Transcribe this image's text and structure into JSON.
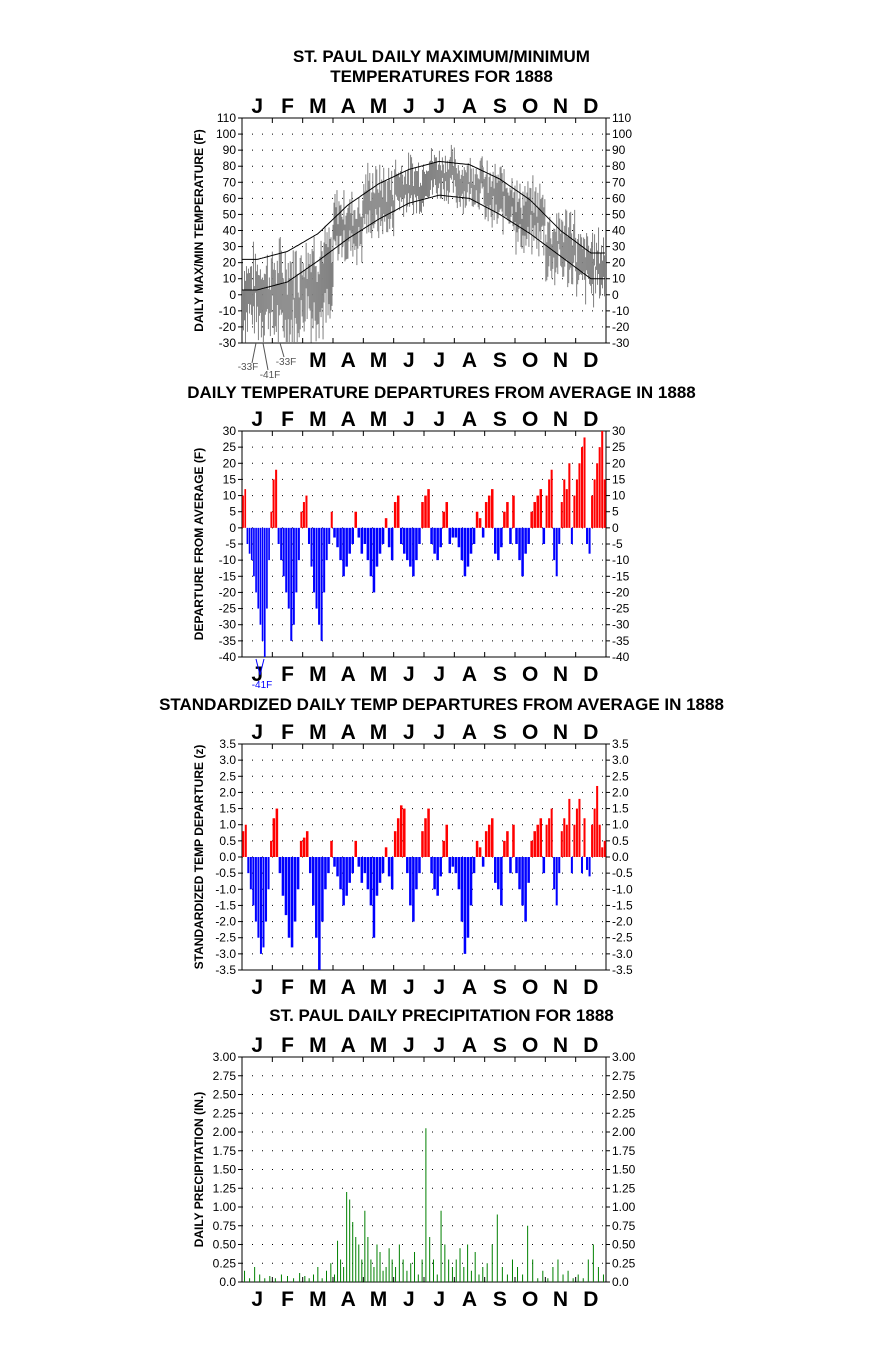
{
  "months": [
    "J",
    "F",
    "M",
    "A",
    "M",
    "J",
    "J",
    "A",
    "S",
    "O",
    "N",
    "D"
  ],
  "colors": {
    "pos": "#ff0000",
    "neg": "#0000ff",
    "grey": "#808080",
    "precip": "#008000",
    "axis": "#000000"
  },
  "chart_data": [
    {
      "type": "line",
      "title_lines": [
        "ST. PAUL DAILY MAXIMUM/MINIMUM",
        "TEMPERATURES FOR 1888"
      ],
      "ylabel": "DAILY MAX/MIN TEMPERATURE (F)",
      "ylim": [
        -30,
        110
      ],
      "yticks": [
        "110",
        "100",
        "90",
        "80",
        "70",
        "60",
        "50",
        "40",
        "30",
        "20",
        "10",
        "0",
        "-10",
        "-20",
        "-30"
      ],
      "bottom_months": [
        "M",
        "A",
        "M",
        "J",
        "J",
        "A",
        "S",
        "O",
        "N",
        "D"
      ],
      "annotations": [
        "-33F",
        "-41F",
        "-33F"
      ],
      "series": [
        {
          "kind": "normal_max",
          "values_by_month": [
            22,
            27,
            38,
            56,
            69,
            78,
            83,
            81,
            72,
            59,
            40,
            26
          ]
        },
        {
          "kind": "normal_min",
          "values_by_month": [
            3,
            8,
            21,
            35,
            47,
            57,
            62,
            60,
            50,
            38,
            24,
            10
          ]
        },
        {
          "kind": "observed_range",
          "values_by_month": [
            [
              -33,
              35
            ],
            [
              -41,
              40
            ],
            [
              -33,
              50
            ],
            [
              15,
              70
            ],
            [
              30,
              85
            ],
            [
              45,
              90
            ],
            [
              55,
              95
            ],
            [
              50,
              90
            ],
            [
              35,
              85
            ],
            [
              20,
              75
            ],
            [
              0,
              60
            ],
            [
              -10,
              45
            ]
          ]
        }
      ]
    },
    {
      "type": "bar",
      "title_lines": [
        "DAILY TEMPERATURE DEPARTURES FROM AVERAGE IN 1888"
      ],
      "ylabel": "DEPARTURE FROM AVERAGE (F)",
      "ylim": [
        -40,
        30
      ],
      "yticks": [
        "30",
        "25",
        "20",
        "15",
        "10",
        "5",
        "0",
        "-5",
        "-10",
        "-15",
        "-20",
        "-25",
        "-30",
        "-35",
        "-40"
      ],
      "annotations": [
        "-41F"
      ],
      "values_by_month": [
        [
          10,
          12,
          -5,
          -8,
          -10,
          -15,
          -20,
          -25,
          -30,
          -35,
          -40,
          -25,
          -10,
          5
        ],
        [
          15,
          18,
          -5,
          -10,
          -15,
          -20,
          -25,
          -35,
          -30,
          -20,
          -10,
          5
        ],
        [
          8,
          10,
          -5,
          -12,
          -20,
          -25,
          -30,
          -35,
          -20,
          -10,
          -5,
          5
        ],
        [
          -3,
          -6,
          -10,
          -15,
          -12,
          -8,
          -5,
          5,
          -3,
          -8
        ],
        [
          -5,
          -10,
          -15,
          -20,
          -12,
          -8,
          -5,
          3,
          -6,
          -10
        ],
        [
          8,
          10,
          -5,
          -8,
          -10,
          -12,
          -15,
          -10,
          -5,
          8
        ],
        [
          10,
          12,
          -5,
          -8,
          -10,
          -6,
          5,
          8,
          -5,
          -3
        ],
        [
          -3,
          -6,
          -10,
          -15,
          -12,
          -8,
          -5,
          5,
          3,
          -3
        ],
        [
          8,
          10,
          12,
          -8,
          -10,
          -6,
          5,
          8,
          -5,
          10
        ],
        [
          -5,
          -10,
          -15,
          -8,
          -5,
          5,
          8,
          10,
          12,
          -5
        ],
        [
          10,
          15,
          18,
          -10,
          -15,
          -5,
          8,
          15,
          12,
          20,
          -5,
          10
        ],
        [
          15,
          20,
          25,
          28,
          -5,
          -8,
          10,
          15,
          20,
          25,
          30,
          15
        ]
      ]
    },
    {
      "type": "bar",
      "title_lines": [
        "STANDARDIZED DAILY TEMP DEPARTURES FROM AVERAGE IN 1888"
      ],
      "ylabel": "STANDARDIZED TEMP DEPARTURE (z)",
      "ylim": [
        -3.5,
        3.5
      ],
      "yticks": [
        "3.5",
        "3.0",
        "2.5",
        "2.0",
        "1.5",
        "1.0",
        "0.5",
        "0.0",
        "-0.5",
        "-1.0",
        "-1.5",
        "-2.0",
        "-2.5",
        "-3.0",
        "-3.5"
      ],
      "values_by_month": [
        [
          0.8,
          1.0,
          -0.5,
          -1.0,
          -1.5,
          -2.0,
          -2.5,
          -3.0,
          -2.8,
          -2.0,
          -1.0,
          0.5
        ],
        [
          1.2,
          1.5,
          -0.5,
          -1.2,
          -1.8,
          -2.5,
          -2.8,
          -2.0,
          -1.0,
          0.5
        ],
        [
          0.6,
          0.8,
          -0.5,
          -1.5,
          -2.5,
          -3.5,
          -2.0,
          -1.0,
          -0.5,
          0.5
        ],
        [
          -0.3,
          -0.6,
          -1.0,
          -1.5,
          -1.2,
          -0.8,
          -0.5,
          0.5,
          -0.3,
          -0.8
        ],
        [
          -0.5,
          -1.0,
          -1.5,
          -2.5,
          -1.2,
          -0.8,
          -0.5,
          0.3,
          -0.6,
          -1.0
        ],
        [
          0.8,
          1.2,
          1.6,
          1.5,
          -0.5,
          -1.5,
          -2.0,
          -1.0,
          -0.5,
          0.8
        ],
        [
          1.2,
          1.5,
          -0.5,
          -1.0,
          -1.2,
          -0.6,
          0.5,
          1.0,
          -0.5,
          -0.3
        ],
        [
          -0.5,
          -1.0,
          -2.0,
          -3.0,
          -2.5,
          -1.5,
          -0.5,
          0.5,
          0.3,
          -0.3
        ],
        [
          0.8,
          1.0,
          1.2,
          -0.8,
          -1.0,
          -1.5,
          0.5,
          0.8,
          -0.5,
          1.0
        ],
        [
          -0.5,
          -1.0,
          -1.5,
          -2.0,
          -0.8,
          0.5,
          0.8,
          1.0,
          1.2,
          -0.5
        ],
        [
          1.0,
          1.2,
          1.5,
          -1.0,
          -1.5,
          -0.5,
          0.8,
          1.2,
          1.0,
          1.8,
          -0.5,
          1.0
        ],
        [
          1.5,
          1.8,
          -0.5,
          1.2,
          -0.4,
          -0.6,
          1.0,
          1.5,
          2.2,
          1.0,
          0.3,
          0.5
        ]
      ]
    },
    {
      "type": "bar",
      "title_lines": [
        "ST. PAUL DAILY PRECIPITATION FOR 1888"
      ],
      "ylabel": "DAILY PRECIPITATION (IN.)",
      "ylim": [
        0,
        3
      ],
      "yticks": [
        "3.00",
        "2.75",
        "2.50",
        "2.25",
        "2.00",
        "1.75",
        "1.50",
        "1.25",
        "1.00",
        "0.75",
        "0.50",
        "0.25",
        "0.0"
      ],
      "values_by_month": [
        [
          0.15,
          0.05,
          0.2,
          0.1,
          0.05,
          0.08
        ],
        [
          0.05,
          0.1,
          0.08,
          0.05,
          0.12
        ],
        [
          0.08,
          0.05,
          0.1,
          0.2,
          0.05,
          0.15,
          0.25
        ],
        [
          0.1,
          0.55,
          0.3,
          0.2,
          1.2,
          1.1,
          0.8,
          0.6,
          0.5,
          0.3
        ],
        [
          0.95,
          0.6,
          0.3,
          0.2,
          0.5,
          0.4,
          0.15,
          0.2,
          0.45,
          0.3
        ],
        [
          0.2,
          0.5,
          0.3,
          0.15,
          0.25,
          0.4,
          0.1,
          0.3
        ],
        [
          2.05,
          0.6,
          0.3,
          0.1,
          0.95,
          0.5,
          0.3,
          0.2
        ],
        [
          0.3,
          0.45,
          0.2,
          0.5,
          0.15,
          0.4,
          0.1,
          0.2
        ],
        [
          0.25,
          0.5,
          0.9,
          0.2,
          0.1,
          0.3
        ],
        [
          0.2,
          0.1,
          0.75,
          0.3,
          0.05,
          0.15
        ],
        [
          0.05,
          0.2,
          0.3,
          0.1,
          0.15,
          0.05
        ],
        [
          0.1,
          0.05,
          0.3,
          0.5,
          0.2,
          0.1
        ]
      ]
    }
  ]
}
